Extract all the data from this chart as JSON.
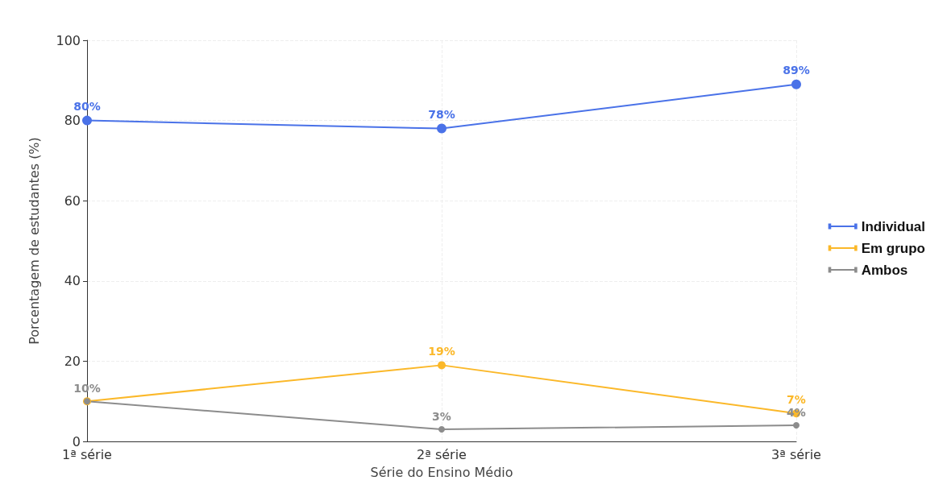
{
  "chart_data": {
    "type": "line",
    "xlabel": "Série do Ensino Médio",
    "ylabel": "Porcentagem de estudantes (%)",
    "categories": [
      "1ª série",
      "2ª série",
      "3ª série"
    ],
    "series": [
      {
        "name": "Individual",
        "color": "#4a72e8",
        "values": [
          80,
          78,
          89
        ],
        "value_labels": [
          "80%",
          "78%",
          "89%"
        ]
      },
      {
        "name": "Em grupo",
        "color": "#fbb829",
        "values": [
          10,
          19,
          7
        ],
        "value_labels": [
          null,
          "19%",
          "7%"
        ]
      },
      {
        "name": "Ambos",
        "color": "#8c8c8c",
        "values": [
          10,
          3,
          4
        ],
        "value_labels": [
          "10%",
          "3%",
          "4%"
        ]
      }
    ],
    "ylim": [
      0,
      100
    ],
    "yticks": [
      0,
      20,
      40,
      60,
      80,
      100
    ],
    "grid": true,
    "legend": "right",
    "marker": "circle",
    "line_style": "solid"
  }
}
